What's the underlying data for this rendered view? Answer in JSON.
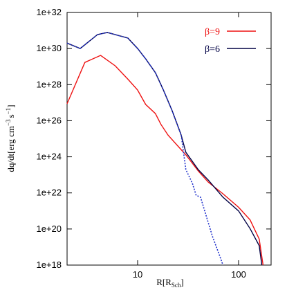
{
  "chart_data": {
    "type": "line",
    "xlabel": [
      "R[R",
      "Sch",
      "]"
    ],
    "ylabel": [
      "dq/dt[erg cm",
      "−3",
      "s",
      "−1",
      "]"
    ],
    "xscale": "log",
    "yscale": "log",
    "xlim": [
      2,
      210
    ],
    "xticks": [
      10,
      100
    ],
    "ylim": [
      1e+18,
      1e+32
    ],
    "yticks": [
      {
        "value": 1e+18,
        "label": "1e+18"
      },
      {
        "value": 1e+20,
        "label": "1e+20"
      },
      {
        "value": 1e+22,
        "label": "1e+22"
      },
      {
        "value": 1e+24,
        "label": "1e+24"
      },
      {
        "value": 1e+26,
        "label": "1e+26"
      },
      {
        "value": 1e+28,
        "label": "1e+28"
      },
      {
        "value": 1e+30,
        "label": "1e+30"
      },
      {
        "value": 1e+32,
        "label": "1e+32"
      }
    ],
    "legend": "upper right",
    "series": [
      {
        "name": "β=9",
        "color": "#ee1111",
        "x": [
          2,
          3,
          4.3,
          6,
          8,
          10,
          12,
          15,
          17,
          20,
          25,
          30,
          40,
          50,
          70,
          100,
          130,
          160,
          175
        ],
        "values": [
          8.7e+26,
          1.7e+29,
          4.2e+29,
          1.1e+29,
          2e+28,
          5e+27,
          8e+26,
          2.5e+26,
          6.3e+25,
          1.6e+25,
          4e+24,
          1.3e+24,
          1.6e+23,
          4e+22,
          8.9e+21,
          1.6e+21,
          3.2e+20,
          2.8e+19,
          1e+18
        ]
      },
      {
        "name": "β=6",
        "color": "#000044",
        "x": [
          2,
          2.7,
          4,
          5,
          6,
          8,
          10,
          12,
          15,
          18,
          22,
          27,
          30,
          40,
          50,
          70,
          100,
          130,
          160,
          170
        ],
        "values": [
          2e+30,
          1e+30,
          5.9e+30,
          7.8e+30,
          5.9e+30,
          3.8e+30,
          1e+30,
          2.7e+29,
          4.6e+28,
          5e+27,
          3.5e+26,
          1.6e+25,
          1.8e+24,
          1.9e+23,
          5.2e+22,
          5.8e+21,
          1e+21,
          1.05e+20,
          1.2e+19,
          1e+18
        ]
      },
      {
        "color": "#2233cc",
        "dashed": true,
        "x": [
          2,
          2.7,
          4,
          5,
          6,
          8,
          10,
          12,
          15,
          18,
          22,
          27,
          30,
          35,
          38,
          42,
          45,
          55,
          65,
          70
        ],
        "values": [
          2e+30,
          1e+30,
          5.9e+30,
          7.8e+30,
          5.9e+30,
          3.8e+30,
          1e+30,
          2.7e+29,
          4.6e+28,
          5e+27,
          3.5e+26,
          1.6e+25,
          2e+23,
          3.2e+22,
          7.4e+21,
          5.8e+21,
          1.6e+21,
          4e+19,
          3.2e+18,
          1e+18
        ]
      }
    ]
  }
}
